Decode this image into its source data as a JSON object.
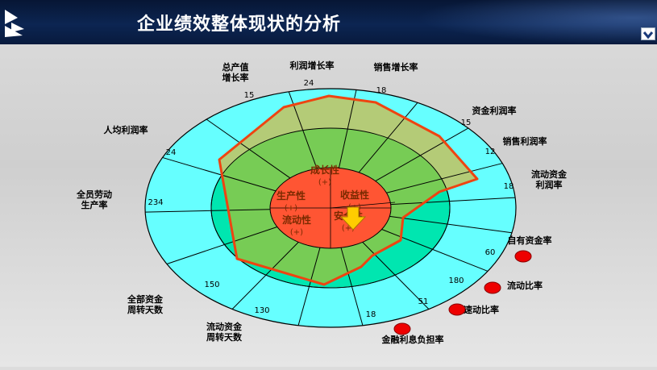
{
  "header": {
    "title": "企业绩效整体现状的分析"
  },
  "center": {
    "sectors": [
      {
        "name": "成长性",
        "sign": "(+)"
      },
      {
        "name": "收益性",
        "sign": "(+)"
      },
      {
        "name": "安全性",
        "sign": "(+)"
      },
      {
        "name": "流动性",
        "sign": "(+)"
      },
      {
        "name": "生产性",
        "sign": "(+)"
      }
    ]
  },
  "indicators": [
    {
      "label": "利润增长率",
      "value": "24"
    },
    {
      "label": "销售增长率",
      "value": "18"
    },
    {
      "label": "资金利润率",
      "value": "15"
    },
    {
      "label": "销售利润率",
      "value": "12"
    },
    {
      "label": "流动资金\n利润率",
      "value": "18"
    },
    {
      "label": "自有资金率",
      "value": "60"
    },
    {
      "label": "流动比率",
      "value": "180"
    },
    {
      "label": "速动比率",
      "value": "51"
    },
    {
      "label": "金融利息负担率",
      "value": "18"
    },
    {
      "label": "流动资金\n周转天数",
      "value": "130"
    },
    {
      "label": "全部资金\n周转天数",
      "value": "150"
    },
    {
      "label": "全员劳动\n生产率",
      "value": "234"
    },
    {
      "label": "人均利润率",
      "value": "24"
    },
    {
      "label": "总产值\n增长率",
      "value": "15"
    }
  ],
  "colors": {
    "outer_ring": "#66ffff",
    "middle_ring": "#00e6b0",
    "inner_ring": "#77cc55",
    "core": "#ff5533",
    "polygon_fill": "#b8c870",
    "polygon_stroke": "#ee4411",
    "red_marker": "#ee0000",
    "arrow": "#ffcc00"
  }
}
